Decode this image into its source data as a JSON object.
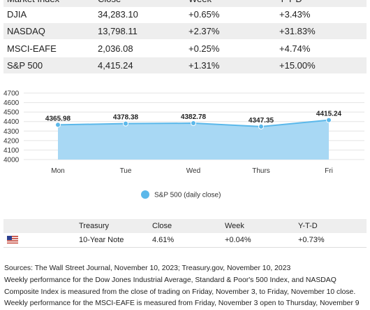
{
  "table": {
    "header": [
      "Market Index",
      "Close",
      "Week",
      "Y-T-D"
    ],
    "rows": [
      [
        "DJIA",
        "34,283.10",
        "+0.65%",
        "+3.43%"
      ],
      [
        "NASDAQ",
        "13,798.11",
        "+2.37%",
        "+31.83%"
      ],
      [
        "MSCI-EAFE",
        "2,036.08",
        "+0.25%",
        "+4.74%"
      ],
      [
        "S&P 500",
        "4,415.24",
        "+1.31%",
        "+15.00%"
      ]
    ]
  },
  "chart_data": {
    "type": "area",
    "categories": [
      "Mon",
      "Tue",
      "Wed",
      "Thurs",
      "Fri"
    ],
    "series": [
      {
        "name": "S&P 500 (daily close)",
        "color": "#5bb8ea",
        "values": [
          4365.98,
          4378.38,
          4382.78,
          4347.35,
          4415.24
        ]
      }
    ],
    "ylim": [
      4000,
      4700
    ],
    "yticks": [
      4000,
      4100,
      4200,
      4300,
      4400,
      4500,
      4600,
      4700
    ],
    "grid": true,
    "legend": "bottom"
  },
  "treasury": {
    "header": [
      "Treasury",
      "Close",
      "Week",
      "Y-T-D"
    ],
    "row": [
      "10-Year Note",
      "4.61%",
      "+0.04%",
      "+0.73%"
    ]
  },
  "sources": "Sources: The Wall Street Journal, November 10, 2023; Treasury.gov, November 10, 2023",
  "note": "Weekly performance for the Dow Jones Industrial Average, Standard & Poor's 500 Index, and NASDAQ Composite Index is measured from the close of trading on Friday, November 3, to Friday, November 10 close. Weekly performance for the MSCI-EAFE is measured from Friday, November 3 open to Thursday, November 9"
}
